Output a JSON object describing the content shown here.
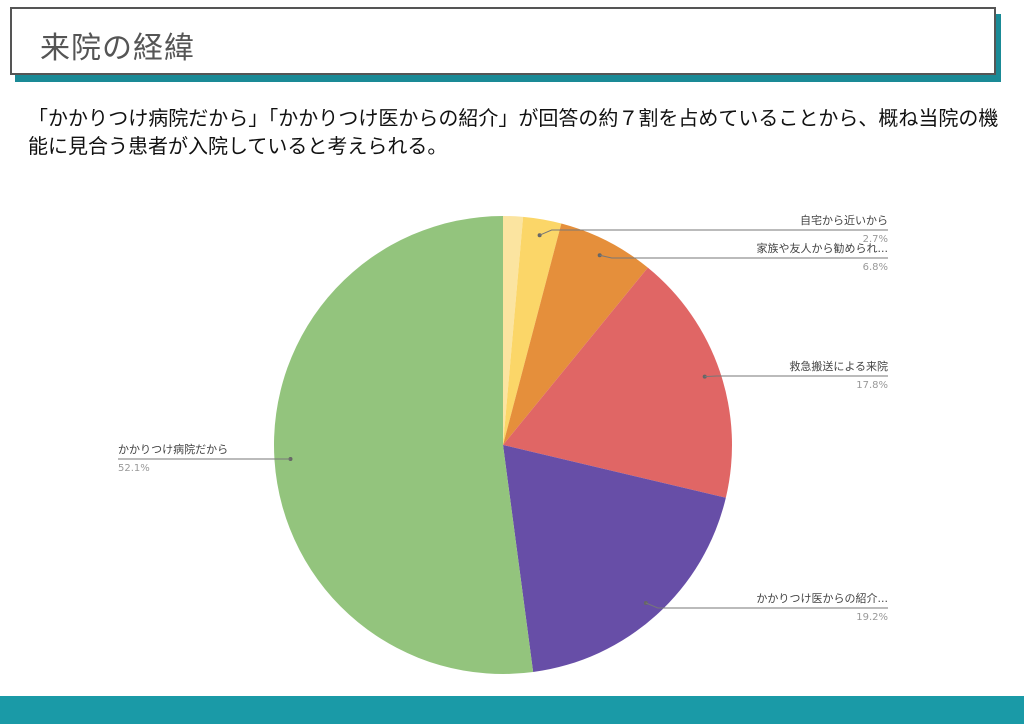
{
  "header": {
    "title": "来院の経緯"
  },
  "description": "「かかりつけ病院だから」「かかりつけ医からの紹介」が回答の約７割を占めていることから、概ね当院の機能に見合う患者が入院していると考えられる。",
  "chart_data": {
    "type": "pie",
    "slices": [
      {
        "label": "",
        "value": 1.4,
        "color": "#fbe4a0",
        "pct_label": ""
      },
      {
        "label": "自宅から近いから",
        "value": 2.7,
        "color": "#fbd668",
        "pct_label": "2.7%"
      },
      {
        "label": "家族や友人から勧められ...",
        "value": 6.8,
        "color": "#e58f3b",
        "pct_label": "6.8%"
      },
      {
        "label": "救急搬送による来院",
        "value": 17.8,
        "color": "#e06665",
        "pct_label": "17.8%"
      },
      {
        "label": "かかりつけ医からの紹介...",
        "value": 19.2,
        "color": "#674ea7",
        "pct_label": "19.2%"
      },
      {
        "label": "かかりつけ病院だから",
        "value": 52.1,
        "color": "#93c47d",
        "pct_label": "52.1%"
      }
    ],
    "start_angle": "top",
    "direction": "clockwise"
  },
  "colors": {
    "accent": "#1a9aa7"
  }
}
